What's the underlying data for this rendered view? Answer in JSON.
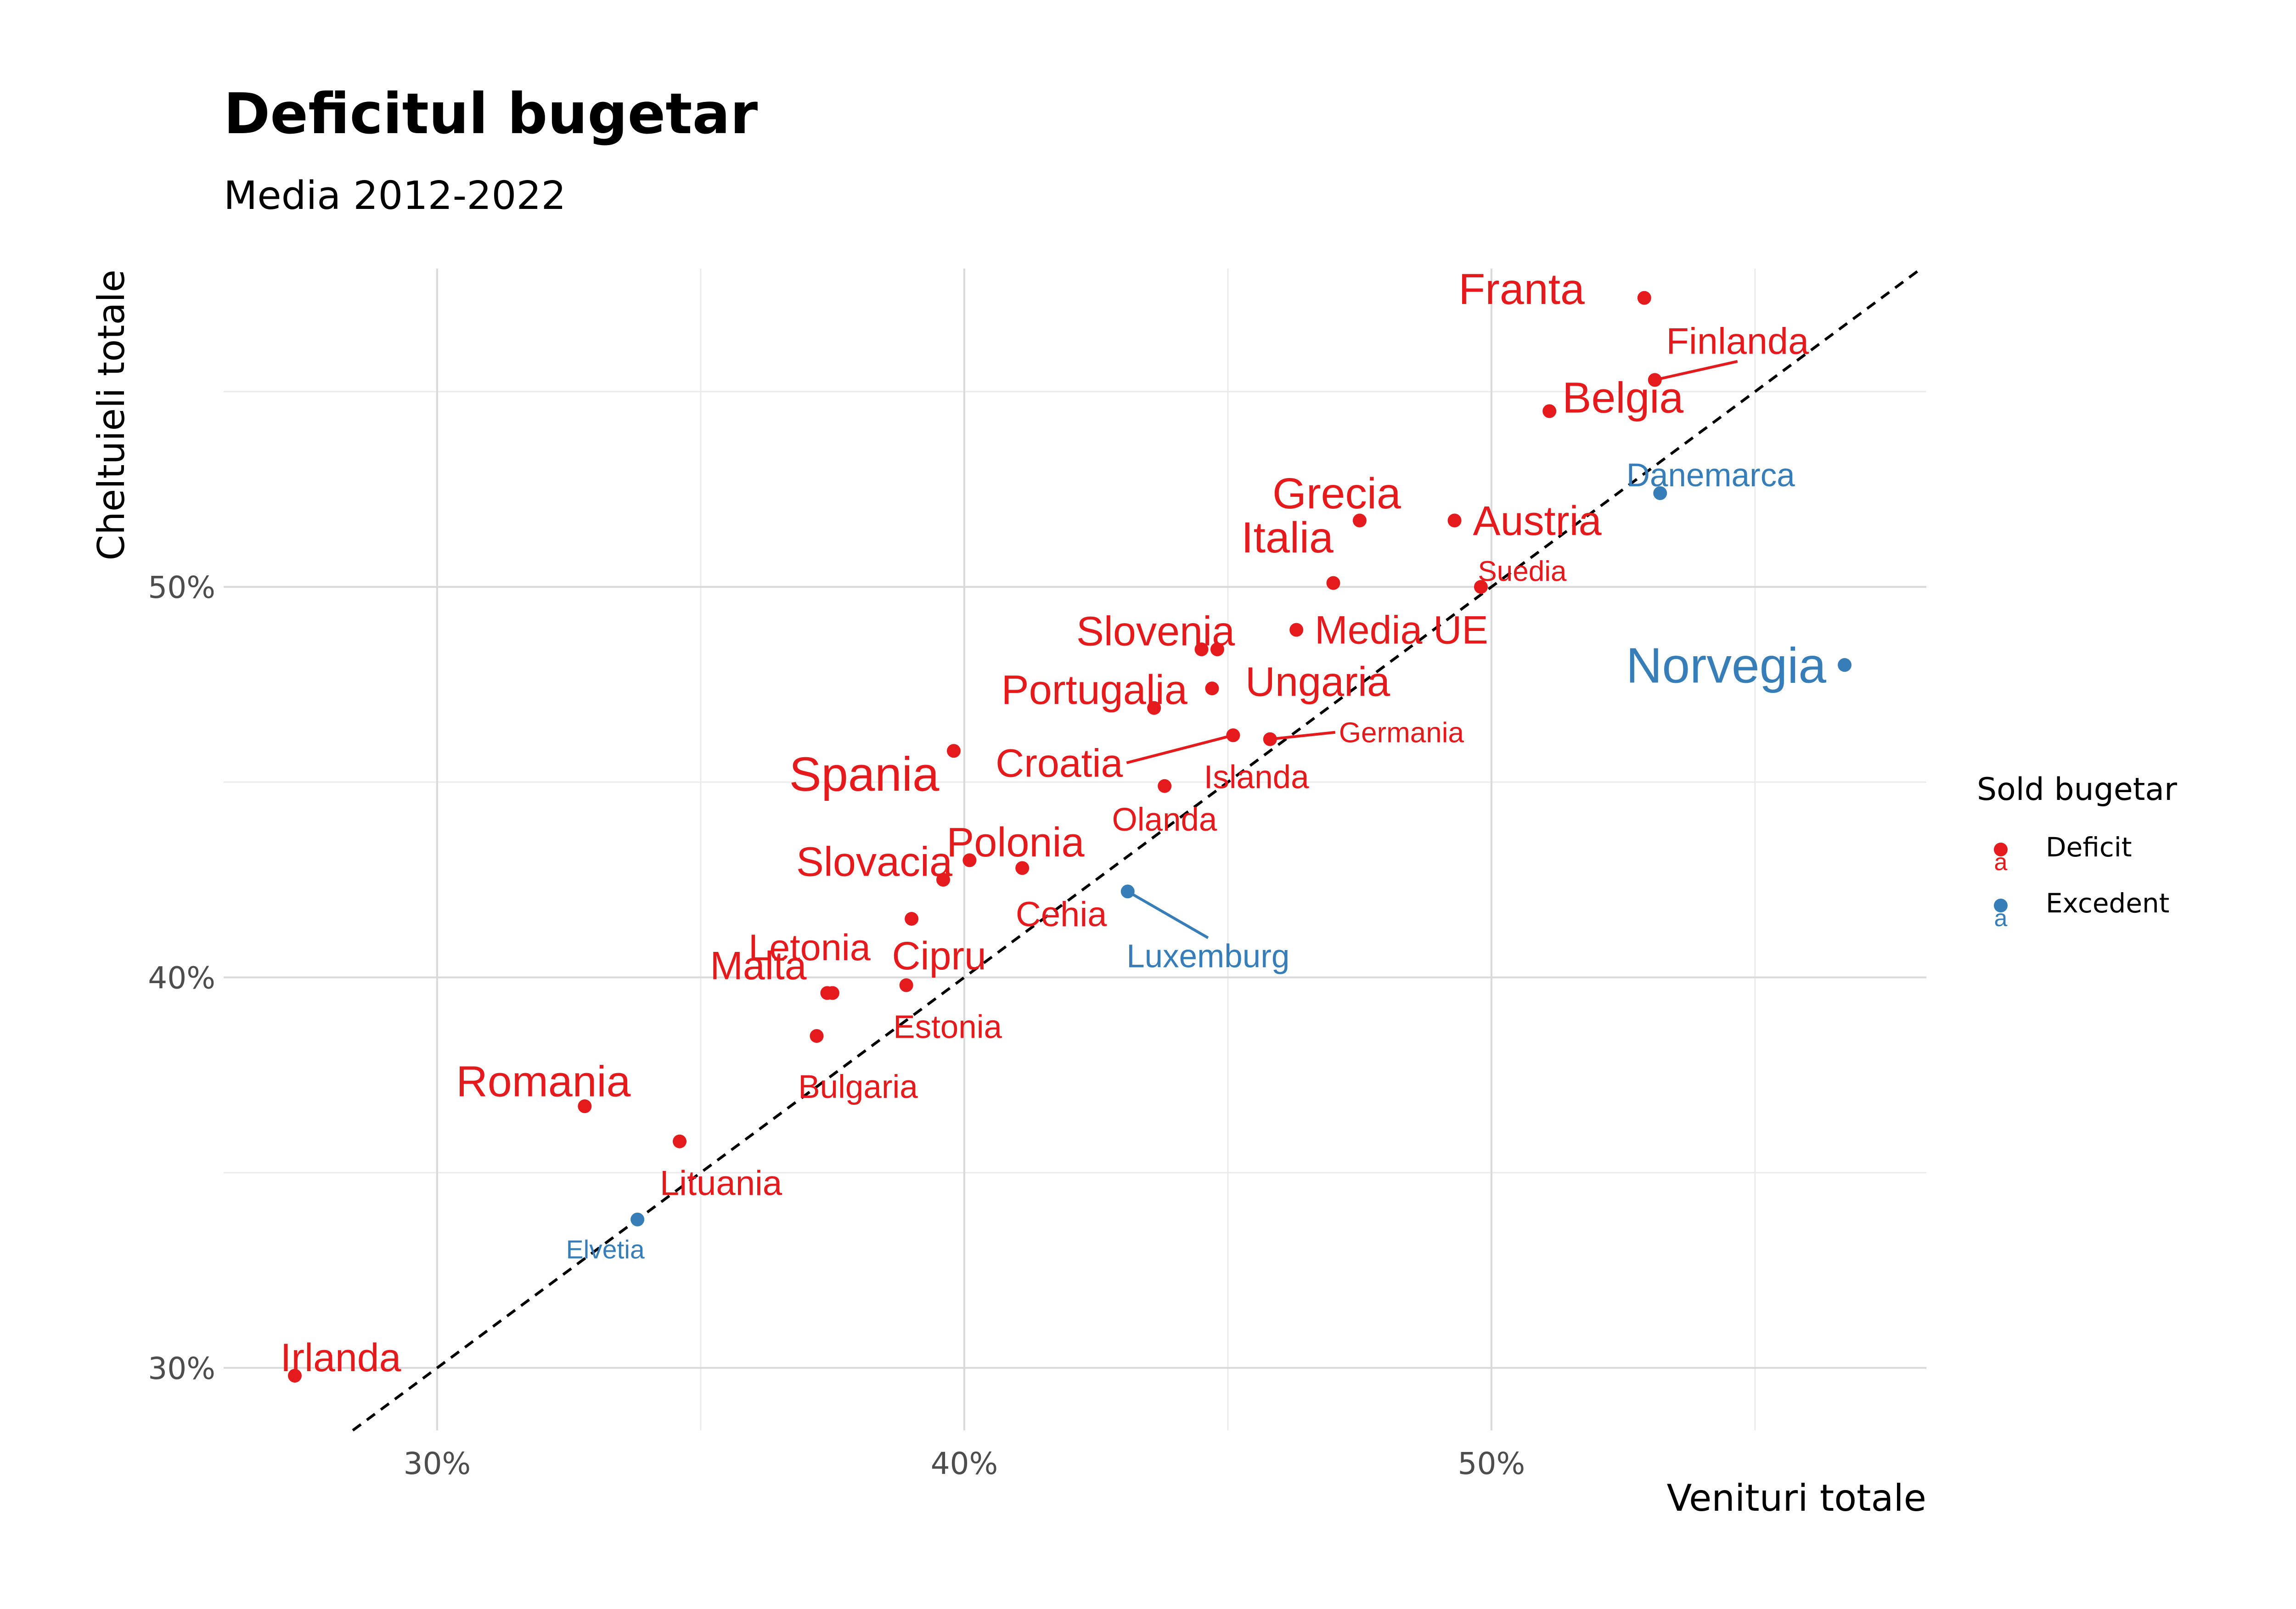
{
  "chart_data": {
    "type": "scatter",
    "title": "Deficitul bugetar",
    "subtitle": "Media 2012-2022",
    "xlabel": "Venituri totale",
    "ylabel": "Cheltuieli totale",
    "xlim": [
      25.95,
      58.25
    ],
    "ylim": [
      28.4,
      58.15
    ],
    "x_ticks": [
      30,
      40,
      50
    ],
    "x_tick_labels": [
      "30%",
      "40%",
      "50%"
    ],
    "y_ticks": [
      30,
      40,
      50
    ],
    "y_tick_labels": [
      "30%",
      "40%",
      "50%"
    ],
    "reference_line": {
      "type": "y=x",
      "style": "dashed",
      "color": "#000000"
    },
    "legend": {
      "title": "Sold bugetar",
      "position": "right",
      "key_glyph": "a",
      "entries": [
        {
          "label": "Deficit",
          "color": "#e41a1c"
        },
        {
          "label": "Excedent",
          "color": "#377eb8"
        }
      ]
    },
    "colors": {
      "Deficit": "#e41a1c",
      "Excedent": "#377eb8"
    },
    "points": [
      {
        "label": "Franta",
        "x": 52.9,
        "y": 57.4,
        "group": "Deficit",
        "label_size": 1.0
      },
      {
        "label": "Finlanda",
        "x": 53.1,
        "y": 55.3,
        "group": "Deficit",
        "label_size": 0.85
      },
      {
        "label": "Belgia",
        "x": 51.1,
        "y": 54.5,
        "group": "Deficit",
        "label_size": 1.0
      },
      {
        "label": "Danemarca",
        "x": 53.2,
        "y": 52.4,
        "group": "Excedent",
        "label_size": 0.75
      },
      {
        "label": "Grecia",
        "x": 47.5,
        "y": 51.7,
        "group": "Deficit",
        "label_size": 1.0
      },
      {
        "label": "Austria",
        "x": 49.3,
        "y": 51.7,
        "group": "Deficit",
        "label_size": 0.95
      },
      {
        "label": "Italia",
        "x": 47.0,
        "y": 50.1,
        "group": "Deficit",
        "label_size": 1.0
      },
      {
        "label": "Suedia",
        "x": 49.8,
        "y": 50.0,
        "group": "Deficit",
        "label_size": 0.65
      },
      {
        "label": "Media UE",
        "x": 46.3,
        "y": 48.9,
        "group": "Deficit",
        "label_size": 0.9
      },
      {
        "label": "Slovenia",
        "x": 44.5,
        "y": 48.4,
        "group": "Deficit",
        "label_size": 0.95
      },
      {
        "label": "Ungaria",
        "x": 44.7,
        "y": 47.4,
        "group": "Deficit",
        "label_size": 0.95
      },
      {
        "label": "Portugalia",
        "x": 43.6,
        "y": 46.9,
        "group": "Deficit",
        "label_size": 0.95
      },
      {
        "label": "Croatia",
        "x": 45.1,
        "y": 46.2,
        "group": "Deficit",
        "label_size": 0.9
      },
      {
        "label": "Germania",
        "x": 45.8,
        "y": 46.1,
        "group": "Deficit",
        "label_size": 0.65
      },
      {
        "label": "Norvegia",
        "x": 56.7,
        "y": 48.0,
        "group": "Excedent",
        "label_size": 1.15
      },
      {
        "label": "Spania",
        "x": 39.8,
        "y": 45.8,
        "group": "Deficit",
        "label_size": 1.1
      },
      {
        "label": "Islanda",
        "x": 43.8,
        "y": 44.9,
        "group": "Deficit",
        "label_size": 0.75
      },
      {
        "label": "Olanda",
        "x": 44.8,
        "y": 48.4,
        "group": "Deficit",
        "label_size": 0.75
      },
      {
        "label": "Polonia",
        "x": 40.1,
        "y": 43.0,
        "group": "Deficit",
        "label_size": 0.95
      },
      {
        "label": "Cehia",
        "x": 41.1,
        "y": 42.8,
        "group": "Deficit",
        "label_size": 0.8
      },
      {
        "label": "Slovacia",
        "x": 39.6,
        "y": 42.5,
        "group": "Deficit",
        "label_size": 0.95
      },
      {
        "label": "Luxemburg",
        "x": 43.1,
        "y": 42.2,
        "group": "Excedent",
        "label_size": 0.75
      },
      {
        "label": "Cipru",
        "x": 39.0,
        "y": 41.5,
        "group": "Deficit",
        "label_size": 0.9
      },
      {
        "label": "Letonia",
        "x": 37.5,
        "y": 39.6,
        "group": "Deficit",
        "label_size": 0.85
      },
      {
        "label": "Estonia",
        "x": 38.9,
        "y": 39.8,
        "group": "Deficit",
        "label_size": 0.75
      },
      {
        "label": "Malta",
        "x": 37.4,
        "y": 39.6,
        "group": "Deficit",
        "label_size": 0.9
      },
      {
        "label": "Bulgaria",
        "x": 37.2,
        "y": 38.5,
        "group": "Deficit",
        "label_size": 0.75
      },
      {
        "label": "Romania",
        "x": 32.8,
        "y": 36.7,
        "group": "Deficit",
        "label_size": 1.0
      },
      {
        "label": "Lituania",
        "x": 34.6,
        "y": 35.8,
        "group": "Deficit",
        "label_size": 0.8
      },
      {
        "label": "Elvetia",
        "x": 33.8,
        "y": 33.8,
        "group": "Excedent",
        "label_size": 0.6
      },
      {
        "label": "Irlanda",
        "x": 27.3,
        "y": 29.8,
        "group": "Deficit",
        "label_size": 0.9
      }
    ]
  }
}
